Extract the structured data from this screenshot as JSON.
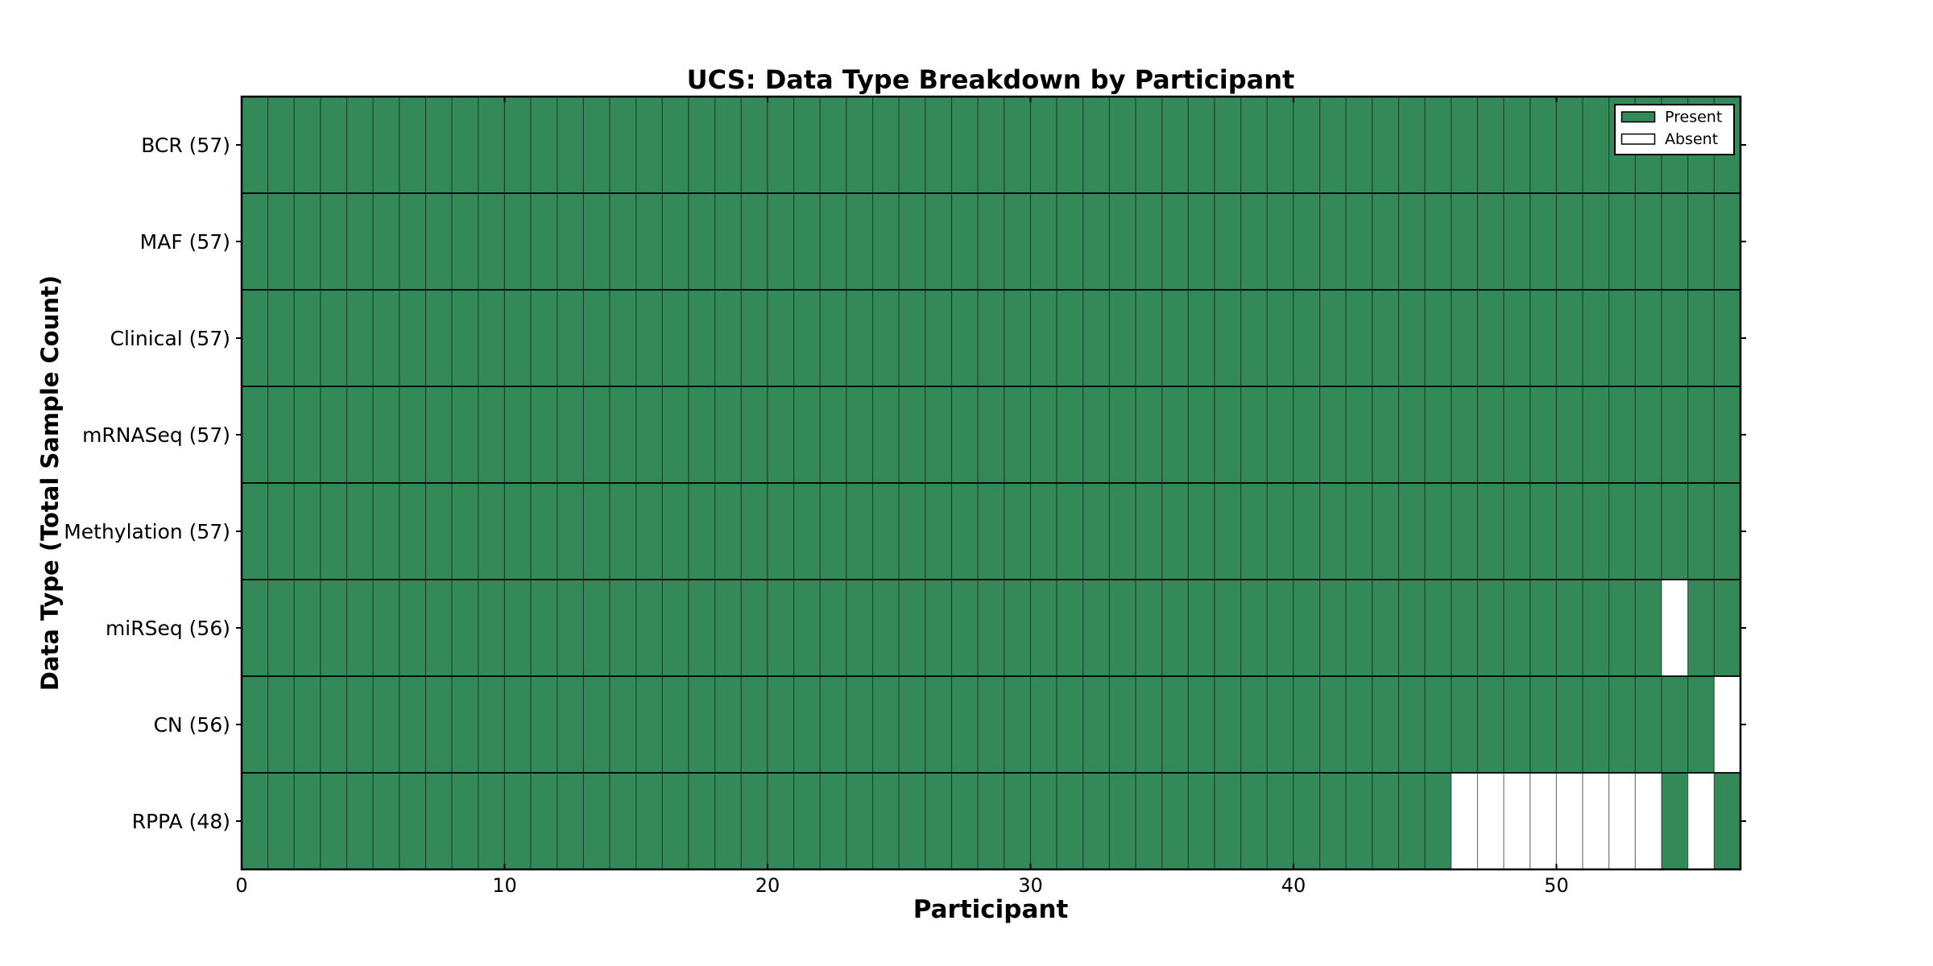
{
  "chart_data": {
    "type": "heatmap",
    "title": "UCS: Data Type Breakdown by Participant",
    "xlabel": "Participant",
    "ylabel": "Data Type (Total Sample Count)",
    "n_participants": 57,
    "x_ticks": [
      0,
      10,
      20,
      30,
      40,
      50
    ],
    "xlim": [
      0,
      57
    ],
    "grid": "cell-borders",
    "legend_position": "upper-right",
    "colors": {
      "present": "#338a58",
      "absent": "#ffffff",
      "cell_edge": "rgba(0,0,0,0.4)",
      "row_divider": "#000000",
      "frame": "#000000"
    },
    "rows": [
      {
        "label": "BCR (57)",
        "present_count": 57,
        "absent_participants": []
      },
      {
        "label": "MAF (57)",
        "present_count": 57,
        "absent_participants": []
      },
      {
        "label": "Clinical (57)",
        "present_count": 57,
        "absent_participants": []
      },
      {
        "label": "mRNASeq (57)",
        "present_count": 57,
        "absent_participants": []
      },
      {
        "label": "Methylation (57)",
        "present_count": 57,
        "absent_participants": []
      },
      {
        "label": "miRSeq (56)",
        "present_count": 56,
        "absent_participants": [
          54
        ]
      },
      {
        "label": "CN (56)",
        "present_count": 56,
        "absent_participants": [
          56
        ]
      },
      {
        "label": "RPPA (48)",
        "present_count": 48,
        "absent_participants": [
          46,
          47,
          48,
          49,
          50,
          51,
          52,
          53,
          55
        ]
      }
    ],
    "legend": [
      {
        "label": "Present",
        "color": "#338a58"
      },
      {
        "label": "Absent",
        "color": "#ffffff"
      }
    ]
  }
}
